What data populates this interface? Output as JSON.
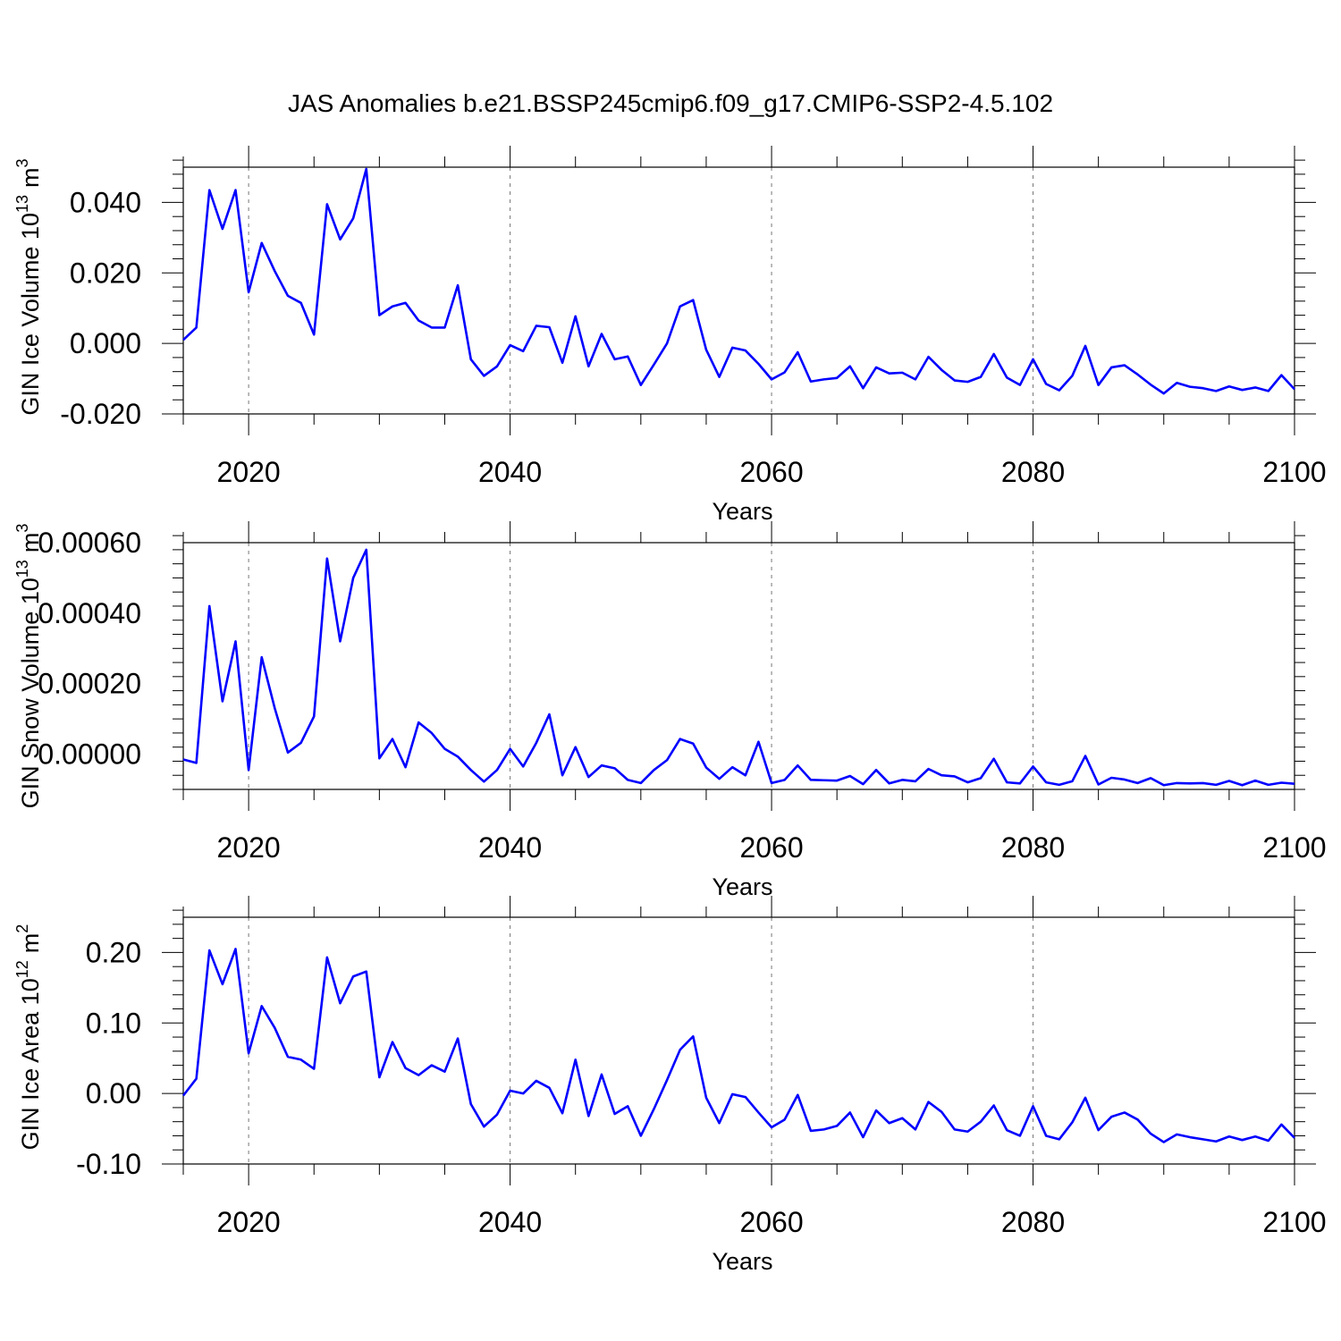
{
  "title": "JAS Anomalies b.e21.BSSP245cmip6.f09_g17.CMIP6-SSP2-4.5.102",
  "line_color": "#0000ff",
  "grid_color": "#777777",
  "chart_data": [
    {
      "type": "line",
      "name": "ice-volume",
      "ylabel": "GIN Ice Volume 10",
      "ylabel_exp": "13",
      "ylabel_unit": "m",
      "ylabel_unit_exp": "3",
      "xlabel": "Years",
      "xlim": [
        2015,
        2100
      ],
      "ylim": [
        -0.02,
        0.05
      ],
      "xticks": [
        2020,
        2040,
        2060,
        2080,
        2100
      ],
      "xtick_labels": [
        "2020",
        "2040",
        "2060",
        "2080",
        "2100"
      ],
      "yticks": [
        -0.02,
        0.0,
        0.02,
        0.04
      ],
      "ytick_labels": [
        "-0.020",
        "0.000",
        "0.020",
        "0.040"
      ],
      "ylabel_anchor": 0.016,
      "x_start": 2015,
      "values": [
        0.001,
        0.0045,
        0.0435,
        0.0325,
        0.0435,
        0.0145,
        0.0285,
        0.0205,
        0.0135,
        0.0115,
        0.0025,
        0.0395,
        0.0295,
        0.0355,
        0.0495,
        0.008,
        0.0105,
        0.0115,
        0.0065,
        0.0045,
        0.0045,
        0.0165,
        -0.0045,
        -0.0092,
        -0.0065,
        -0.0005,
        -0.0022,
        0.005,
        0.0046,
        -0.0055,
        0.0077,
        -0.0065,
        0.0027,
        -0.0045,
        -0.0037,
        -0.0118,
        -0.006,
        0.0,
        0.0105,
        0.0123,
        -0.0018,
        -0.0095,
        -0.0012,
        -0.002,
        -0.0058,
        -0.0102,
        -0.0082,
        -0.0025,
        -0.0108,
        -0.0102,
        -0.0098,
        -0.0065,
        -0.0127,
        -0.0068,
        -0.0085,
        -0.0083,
        -0.0102,
        -0.0038,
        -0.0075,
        -0.0105,
        -0.0109,
        -0.0095,
        -0.003,
        -0.0097,
        -0.0118,
        -0.0045,
        -0.0115,
        -0.0133,
        -0.0092,
        -0.0007,
        -0.0118,
        -0.0068,
        -0.0062,
        -0.0088,
        -0.0117,
        -0.0142,
        -0.0112,
        -0.0123,
        -0.0127,
        -0.0135,
        -0.0122,
        -0.0132,
        -0.0125,
        -0.0135,
        -0.009,
        -0.013
      ]
    },
    {
      "type": "line",
      "name": "snow-volume",
      "ylabel": "GIN Snow Volume 10",
      "ylabel_exp": "13",
      "ylabel_unit": "m",
      "ylabel_unit_exp": "3",
      "xlabel": "Years",
      "xlim": [
        2015,
        2100
      ],
      "ylim": [
        -0.0001,
        0.0006
      ],
      "xticks": [
        2020,
        2040,
        2060,
        2080,
        2100
      ],
      "xtick_labels": [
        "2020",
        "2040",
        "2060",
        "2080",
        "2100"
      ],
      "yticks": [
        0.0,
        0.0002,
        0.0004,
        0.0006
      ],
      "ytick_labels": [
        "0.00000",
        "0.00020",
        "0.00040",
        "0.00060"
      ],
      "ylabel_anchor": 0.00025,
      "x_start": 2015,
      "values": [
        -1.5e-05,
        -2.5e-05,
        0.00042,
        0.00015,
        0.00032,
        -4.5e-05,
        0.000275,
        0.00013,
        4.5e-06,
        3.2e-05,
        0.000107,
        0.000555,
        0.00032,
        0.0005,
        0.00058,
        -1.2e-05,
        4.3e-05,
        -3.7e-05,
        9e-05,
        6e-05,
        1.5e-05,
        -7e-06,
        -4.5e-05,
        -7.8e-05,
        -4.5e-05,
        1.5e-05,
        -3.5e-05,
        3.2e-05,
        0.000113,
        -6e-05,
        2e-05,
        -6.5e-05,
        -3.2e-05,
        -4e-05,
        -7.3e-05,
        -8.2e-05,
        -4.5e-05,
        -1.7e-05,
        4.3e-05,
        3e-05,
        -3.8e-05,
        -7e-05,
        -3.7e-05,
        -6e-05,
        3.5e-05,
        -8.2e-05,
        -7.3e-05,
        -3.2e-05,
        -7.3e-05,
        -7.4e-05,
        -7.5e-05,
        -6.2e-05,
        -8.5e-05,
        -4.5e-05,
        -8.3e-05,
        -7.3e-05,
        -7.7e-05,
        -4.2e-05,
        -6e-05,
        -6.3e-05,
        -8e-05,
        -6.8e-05,
        -1.3e-05,
        -8e-05,
        -8.3e-05,
        -3.5e-05,
        -8e-05,
        -8.7e-05,
        -7.7e-05,
        -5e-06,
        -8.6e-05,
        -6.7e-05,
        -7.2e-05,
        -8.2e-05,
        -6.8e-05,
        -8.8e-05,
        -8.2e-05,
        -8.3e-05,
        -8.2e-05,
        -8.7e-05,
        -7.6e-05,
        -8.8e-05,
        -7.5e-05,
        -8.7e-05,
        -8.1e-05,
        -8.4e-05
      ]
    },
    {
      "type": "line",
      "name": "ice-area",
      "ylabel": "GIN Ice Area 10",
      "ylabel_exp": "12",
      "ylabel_unit": "m",
      "ylabel_unit_exp": "2",
      "xlabel": "Years",
      "xlim": [
        2015,
        2100
      ],
      "ylim": [
        -0.1,
        0.25
      ],
      "xticks": [
        2020,
        2040,
        2060,
        2080,
        2100
      ],
      "xtick_labels": [
        "2020",
        "2040",
        "2060",
        "2080",
        "2100"
      ],
      "yticks": [
        -0.1,
        0.0,
        0.1,
        0.2
      ],
      "ytick_labels": [
        "-0.10",
        "0.00",
        "0.10",
        "0.20"
      ],
      "ylabel_anchor": 0.08,
      "x_start": 2015,
      "values": [
        -0.003,
        0.021,
        0.203,
        0.155,
        0.205,
        0.057,
        0.124,
        0.093,
        0.052,
        0.048,
        0.035,
        0.193,
        0.128,
        0.166,
        0.173,
        0.023,
        0.073,
        0.036,
        0.026,
        0.04,
        0.031,
        0.078,
        -0.015,
        -0.047,
        -0.03,
        0.004,
        0.0,
        0.018,
        0.008,
        -0.028,
        0.048,
        -0.032,
        0.027,
        -0.029,
        -0.018,
        -0.06,
        -0.022,
        0.019,
        0.062,
        0.081,
        -0.006,
        -0.042,
        -0.001,
        -0.005,
        -0.027,
        -0.048,
        -0.037,
        -0.002,
        -0.053,
        -0.051,
        -0.046,
        -0.027,
        -0.062,
        -0.024,
        -0.042,
        -0.035,
        -0.051,
        -0.012,
        -0.026,
        -0.051,
        -0.054,
        -0.04,
        -0.017,
        -0.052,
        -0.06,
        -0.018,
        -0.06,
        -0.065,
        -0.041,
        -0.006,
        -0.052,
        -0.033,
        -0.027,
        -0.037,
        -0.057,
        -0.069,
        -0.058,
        -0.062,
        -0.065,
        -0.068,
        -0.061,
        -0.066,
        -0.061,
        -0.067,
        -0.044,
        -0.063
      ]
    }
  ]
}
